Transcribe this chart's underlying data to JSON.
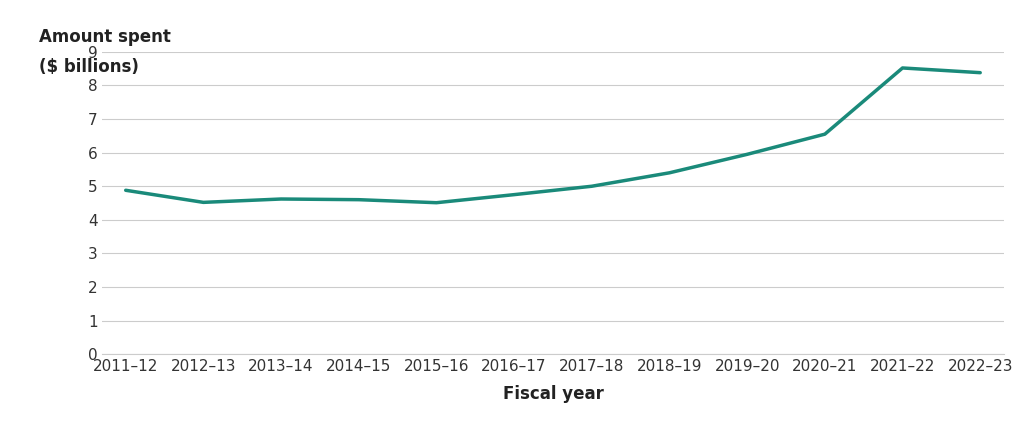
{
  "x_labels": [
    "2011–12",
    "2012–13",
    "2013–14",
    "2014–15",
    "2015–16",
    "2016–17",
    "2017–18",
    "2018–19",
    "2019–20",
    "2020–21",
    "2021–22",
    "2022–23"
  ],
  "y_values": [
    4.88,
    4.52,
    4.62,
    4.6,
    4.51,
    4.75,
    5.0,
    5.4,
    5.95,
    6.55,
    8.52,
    8.38
  ],
  "line_color": "#1a8a7a",
  "line_width": 2.5,
  "ylabel_line1": "Amount spent",
  "ylabel_line2": "($ billions)",
  "xlabel": "Fiscal year",
  "ylim": [
    0,
    9
  ],
  "yticks": [
    0,
    1,
    2,
    3,
    4,
    5,
    6,
    7,
    8,
    9
  ],
  "background_color": "#ffffff",
  "grid_color": "#cccccc",
  "ylabel_fontsize": 12,
  "xlabel_fontsize": 12,
  "tick_fontsize": 11
}
